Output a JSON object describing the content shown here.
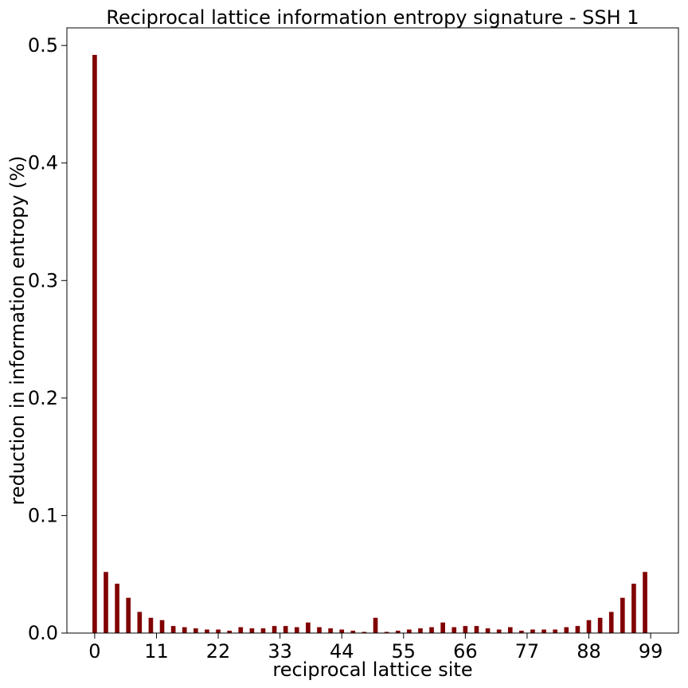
{
  "chart_data": {
    "type": "bar",
    "title": "Reciprocal lattice information entropy signature - SSH 1",
    "xlabel": "reciprocal lattice site",
    "ylabel": "reduction in information entropy (%)",
    "xlim": [
      -4.95,
      103.95
    ],
    "ylim": [
      0,
      0.515
    ],
    "xticks": [
      0,
      11,
      22,
      33,
      44,
      55,
      66,
      77,
      88,
      99
    ],
    "yticks": [
      0.0,
      0.1,
      0.2,
      0.3,
      0.4,
      0.5
    ],
    "ytick_labels": [
      "0.0",
      "0.1",
      "0.2",
      "0.3",
      "0.4",
      "0.5"
    ],
    "bar_color": "#800000",
    "grid": false,
    "series": [
      {
        "x": [
          0,
          2,
          4,
          6,
          8,
          10,
          12,
          14,
          16,
          18,
          20,
          22,
          24,
          26,
          28,
          30,
          32,
          34,
          36,
          38,
          40,
          42,
          44,
          46,
          48,
          50,
          52,
          54,
          56,
          58,
          60,
          62,
          64,
          66,
          68,
          70,
          72,
          74,
          76,
          78,
          80,
          82,
          84,
          86,
          88,
          90,
          92,
          94,
          96,
          98
        ],
        "values": [
          0.492,
          0.052,
          0.042,
          0.03,
          0.018,
          0.013,
          0.011,
          0.006,
          0.005,
          0.004,
          0.003,
          0.003,
          0.002,
          0.005,
          0.004,
          0.004,
          0.006,
          0.006,
          0.005,
          0.009,
          0.005,
          0.004,
          0.003,
          0.002,
          0.001,
          0.013,
          0.001,
          0.002,
          0.003,
          0.004,
          0.005,
          0.009,
          0.005,
          0.006,
          0.006,
          0.004,
          0.003,
          0.005,
          0.002,
          0.003,
          0.003,
          0.003,
          0.005,
          0.006,
          0.011,
          0.013,
          0.018,
          0.03,
          0.042,
          0.052
        ]
      }
    ]
  }
}
